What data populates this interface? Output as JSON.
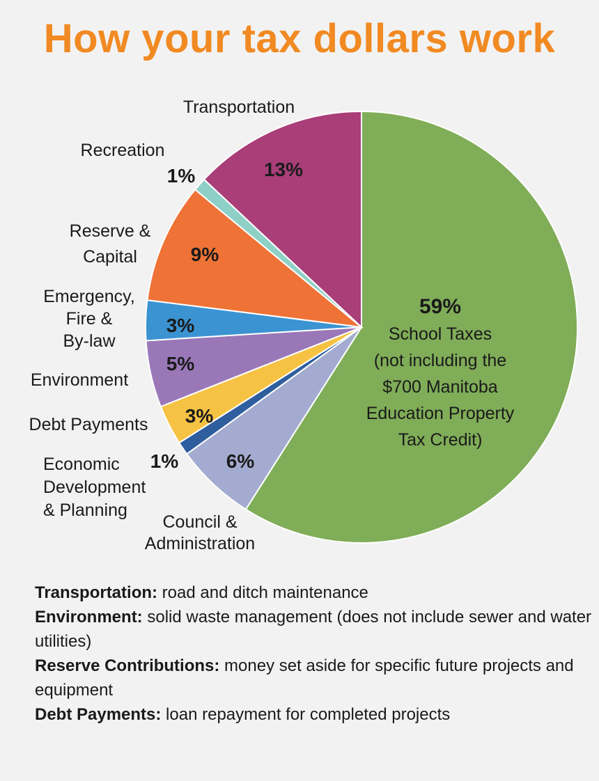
{
  "title": "How your tax dollars work",
  "chart_data": {
    "type": "pie",
    "slices": [
      {
        "key": "school",
        "value": 59,
        "label": "59%",
        "color": "#80ad58",
        "category_lines": [
          "School Taxes",
          "(not including the",
          "$700 Manitoba",
          "Education Property",
          "Tax Credit)"
        ]
      },
      {
        "key": "council",
        "value": 6,
        "label": "6%",
        "color": "#a3acd0",
        "category_lines": [
          "Council &",
          "Administration"
        ]
      },
      {
        "key": "economic",
        "value": 1,
        "label": "1%",
        "color": "#2f5e9e",
        "category_lines": [
          "Economic",
          "Development",
          "& Planning"
        ]
      },
      {
        "key": "debt",
        "value": 3,
        "label": "3%",
        "color": "#f6c244",
        "category_lines": [
          "Debt Payments"
        ]
      },
      {
        "key": "environment",
        "value": 5,
        "label": "5%",
        "color": "#9a78b8",
        "category_lines": [
          "Environment"
        ]
      },
      {
        "key": "emergency",
        "value": 3,
        "label": "3%",
        "color": "#3b93d2",
        "category_lines": [
          "Emergency,",
          "Fire &",
          "By-law"
        ]
      },
      {
        "key": "reserve",
        "value": 9,
        "label": "9%",
        "color": "#ef7236",
        "category_lines": [
          "Reserve &",
          "Capital"
        ]
      },
      {
        "key": "recreation",
        "value": 1,
        "label": "1%",
        "color": "#8fd0c6",
        "category_lines": [
          "Recreation"
        ]
      },
      {
        "key": "transportation",
        "value": 13,
        "label": "13%",
        "color": "#a93e78",
        "category_lines": [
          "Transportation"
        ]
      }
    ]
  },
  "definitions": [
    {
      "term": "Transportation:",
      "text": "  road and ditch maintenance"
    },
    {
      "term": "Environment:",
      "text": " solid waste management (does not include sewer and water utilities)"
    },
    {
      "term": "Reserve Contributions:",
      "text": " money set aside for specific future projects and equipment"
    },
    {
      "term": "Debt Payments:",
      "text": " loan repayment for completed projects"
    }
  ]
}
